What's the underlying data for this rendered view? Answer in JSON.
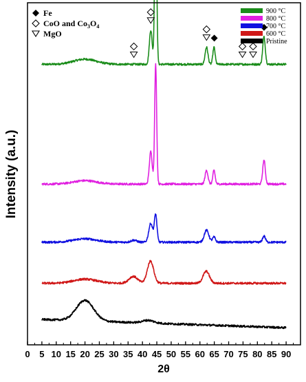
{
  "chart_data": {
    "type": "line",
    "xlabel": "2θ",
    "ylabel": "Intensity (a.u.)",
    "xlim": [
      0,
      95
    ],
    "x_ticks": [
      "0",
      "5",
      "10",
      "15",
      "20",
      "25",
      "30",
      "35",
      "40",
      "45",
      "50",
      "55",
      "60",
      "65",
      "70",
      "75",
      "80",
      "85",
      "90"
    ],
    "y_ticks_labeled": false,
    "colors": {
      "900": "#1a8c1a",
      "800": "#e020e0",
      "700": "#1010e0",
      "600": "#d01818",
      "pristine": "#000000"
    },
    "legend_position": "top-right",
    "legend": [
      {
        "label": "900 °C",
        "color": "#1a8c1a"
      },
      {
        "label": "800 °C",
        "color": "#e020e0"
      },
      {
        "label": "700 °C",
        "color": "#1010e0"
      },
      {
        "label": "600 °C",
        "color": "#d01818"
      },
      {
        "label": "Pristine",
        "color": "#000000"
      }
    ],
    "phase_markers": [
      {
        "symbol": "filled-diamond",
        "label": "Fe"
      },
      {
        "symbol": "open-diamond",
        "label": "CoO and Co3O4",
        "label_main": "CoO and Co",
        "label_sub": "3",
        "label_tail": "O",
        "label_sub2": "4"
      },
      {
        "symbol": "open-triangle-down",
        "label": "MgO"
      }
    ],
    "series": [
      {
        "name": "900 °C",
        "offset": 0.82,
        "peaks": [
          {
            "x": 20.0,
            "h": 0.015,
            "w": 4.0
          },
          {
            "x": 42.9,
            "h": 0.1,
            "w": 0.5
          },
          {
            "x": 44.6,
            "h": 0.52,
            "w": 0.35
          },
          {
            "x": 62.3,
            "h": 0.05,
            "w": 0.5
          },
          {
            "x": 64.9,
            "h": 0.05,
            "w": 0.4
          },
          {
            "x": 82.3,
            "h": 0.08,
            "w": 0.45
          }
        ]
      },
      {
        "name": "800 °C",
        "offset": 0.47,
        "peaks": [
          {
            "x": 20.0,
            "h": 0.01,
            "w": 4.0
          },
          {
            "x": 42.9,
            "h": 0.095,
            "w": 0.5
          },
          {
            "x": 44.6,
            "h": 0.35,
            "w": 0.35
          },
          {
            "x": 62.3,
            "h": 0.04,
            "w": 0.5
          },
          {
            "x": 64.9,
            "h": 0.04,
            "w": 0.4
          },
          {
            "x": 82.3,
            "h": 0.07,
            "w": 0.45
          }
        ]
      },
      {
        "name": "700 °C",
        "offset": 0.3,
        "peaks": [
          {
            "x": 20.0,
            "h": 0.01,
            "w": 4.0
          },
          {
            "x": 37.0,
            "h": 0.006,
            "w": 1.0
          },
          {
            "x": 42.9,
            "h": 0.055,
            "w": 0.7
          },
          {
            "x": 44.6,
            "h": 0.08,
            "w": 0.45
          },
          {
            "x": 62.3,
            "h": 0.035,
            "w": 0.8
          },
          {
            "x": 64.9,
            "h": 0.015,
            "w": 0.5
          },
          {
            "x": 82.3,
            "h": 0.018,
            "w": 0.5
          }
        ]
      },
      {
        "name": "600 °C",
        "offset": 0.18,
        "peaks": [
          {
            "x": 20.0,
            "h": 0.012,
            "w": 4.0
          },
          {
            "x": 36.8,
            "h": 0.02,
            "w": 1.5
          },
          {
            "x": 42.8,
            "h": 0.065,
            "w": 1.1
          },
          {
            "x": 62.2,
            "h": 0.035,
            "w": 1.1
          }
        ]
      },
      {
        "name": "Pristine",
        "offset": 0.05,
        "peaks": [
          {
            "x": 20.0,
            "h": 0.06,
            "w": 3.0
          },
          {
            "x": 42.0,
            "h": 0.008,
            "w": 2.0
          }
        ]
      }
    ],
    "annotations": [
      {
        "symbol": "open-diamond",
        "x": 37.0,
        "series": "900 °C"
      },
      {
        "symbol": "open-triangle-down",
        "x": 37.0,
        "series": "900 °C"
      },
      {
        "symbol": "open-diamond",
        "x": 42.9,
        "series": "900 °C"
      },
      {
        "symbol": "open-triangle-down",
        "x": 42.9,
        "series": "900 °C"
      },
      {
        "symbol": "filled-diamond",
        "x": 44.6,
        "series": "900 °C"
      },
      {
        "symbol": "open-diamond",
        "x": 62.3,
        "series": "900 °C"
      },
      {
        "symbol": "open-triangle-down",
        "x": 62.3,
        "series": "900 °C"
      },
      {
        "symbol": "filled-diamond",
        "x": 65.0,
        "series": "900 °C"
      },
      {
        "symbol": "open-diamond",
        "x": 74.8,
        "series": "900 °C"
      },
      {
        "symbol": "open-triangle-down",
        "x": 74.8,
        "series": "900 °C"
      },
      {
        "symbol": "open-diamond",
        "x": 78.5,
        "series": "900 °C"
      },
      {
        "symbol": "open-triangle-down",
        "x": 78.5,
        "series": "900 °C"
      },
      {
        "symbol": "filled-diamond",
        "x": 82.3,
        "series": "900 °C"
      }
    ]
  }
}
